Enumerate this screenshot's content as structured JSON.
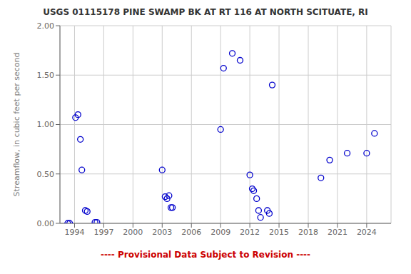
{
  "chart_data": {
    "type": "scatter",
    "title": "USGS 01115178 PINE SWAMP BK AT RT 116 AT NORTH SCITUATE, RI",
    "ylabel": "Streamflow, in cubic feet per second",
    "x": [
      1993.3,
      1993.5,
      1994.1,
      1994.35,
      1994.6,
      1994.75,
      1995.1,
      1995.3,
      1996.1,
      1996.3,
      2003.0,
      2003.3,
      2003.5,
      2003.7,
      2003.9,
      2004.05,
      2009.0,
      2009.3,
      2010.2,
      2011.0,
      2012.0,
      2012.25,
      2012.4,
      2012.7,
      2012.9,
      2013.1,
      2013.8,
      2014.0,
      2014.3,
      2019.3,
      2020.2,
      2022.0,
      2024.0,
      2024.8
    ],
    "values": [
      0.0,
      0.0,
      1.07,
      1.1,
      0.85,
      0.54,
      0.13,
      0.12,
      0.01,
      0.01,
      0.54,
      0.27,
      0.25,
      0.28,
      0.16,
      0.16,
      0.95,
      1.57,
      1.72,
      1.65,
      0.49,
      0.35,
      0.33,
      0.25,
      0.13,
      0.06,
      0.13,
      0.1,
      1.4,
      0.46,
      0.64,
      0.71,
      0.71,
      0.91
    ],
    "color": "#0000cc",
    "marker": "circle",
    "xlim": [
      1992.5,
      2026.5
    ],
    "ylim": [
      0.0,
      2.0
    ],
    "xticks": [
      1994,
      1997,
      2000,
      2003,
      2006,
      2009,
      2012,
      2015,
      2018,
      2021,
      2024
    ],
    "yticks": [
      {
        "value": 0.0,
        "label": "0.00"
      },
      {
        "value": 0.5,
        "label": "0.50"
      },
      {
        "value": 1.0,
        "label": "1.00"
      },
      {
        "value": 1.5,
        "label": "1.50"
      },
      {
        "value": 2.0,
        "label": "2.00"
      }
    ],
    "grid": true,
    "annotations": [
      {
        "text": "---- Provisional Data Subject to Revision ----",
        "color": "#cc0000"
      }
    ]
  }
}
